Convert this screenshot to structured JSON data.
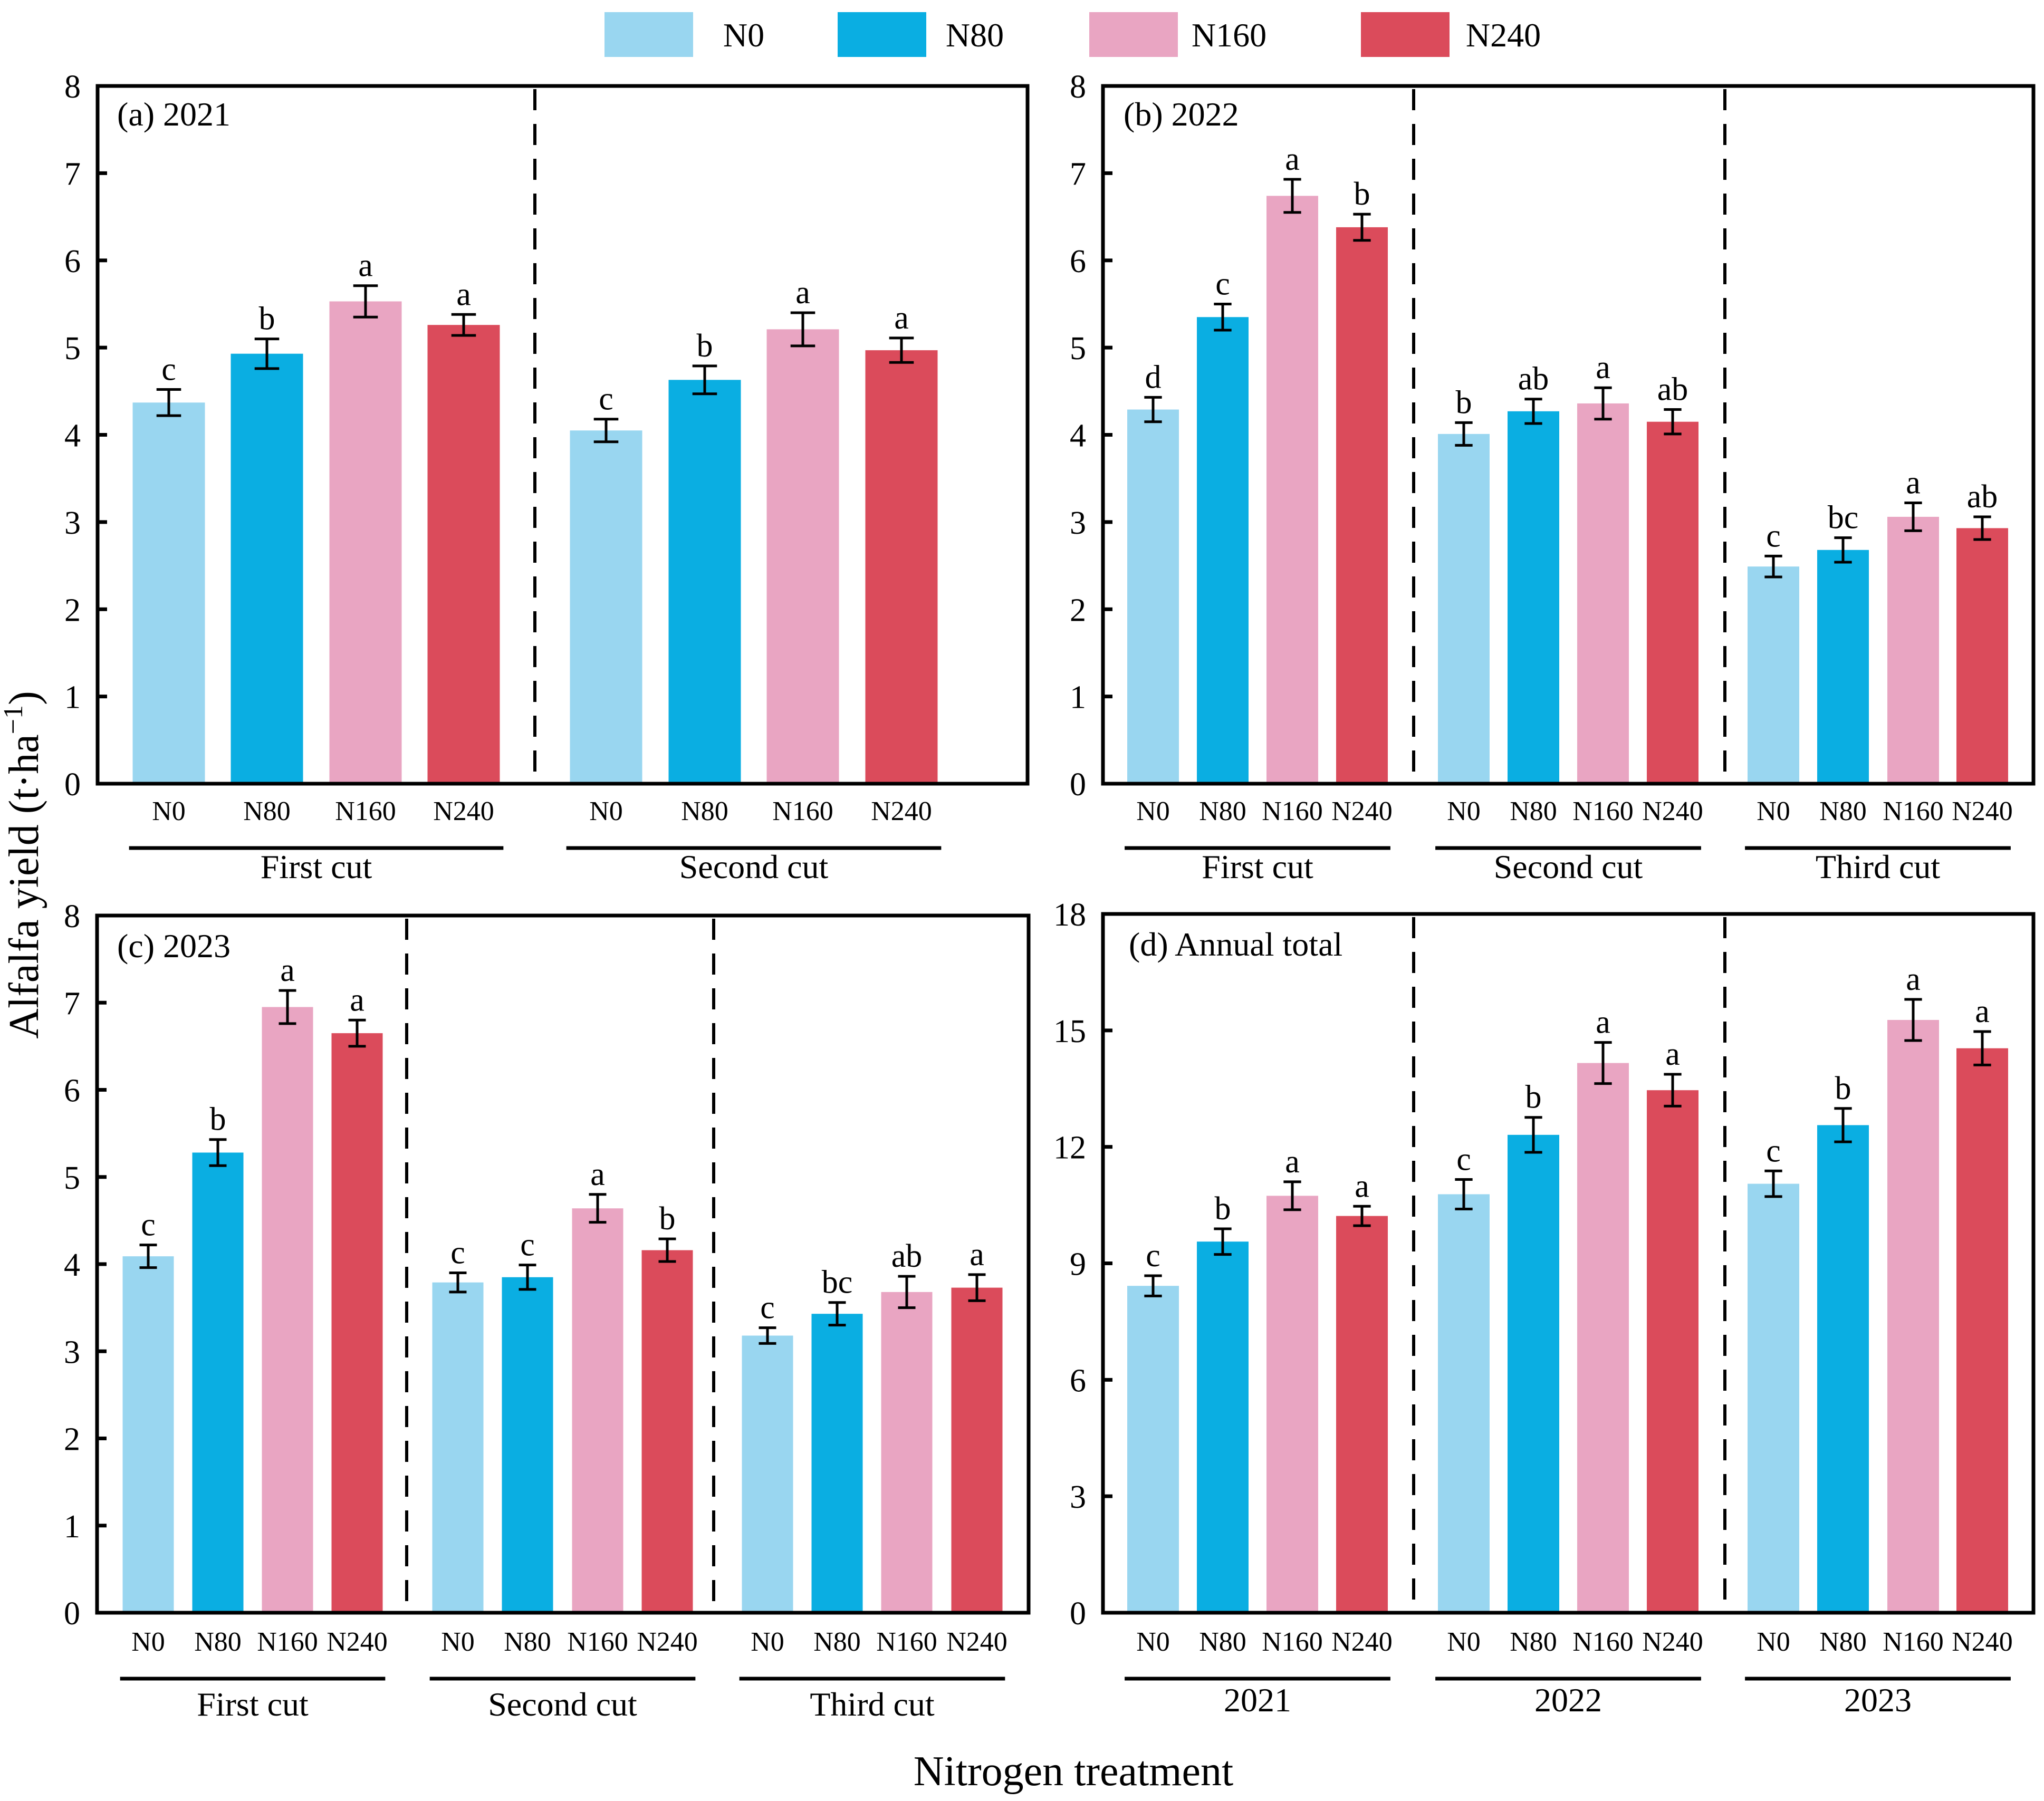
{
  "figure": {
    "ylabel_main": "Alfalfa yield (t·ha",
    "ylabel_sup": "−1",
    "ylabel_close": ")",
    "xlabel": "Nitrogen treatment"
  },
  "legend": [
    {
      "label": "N0",
      "color": "#99d6f0"
    },
    {
      "label": "N80",
      "color": "#0aaee2"
    },
    {
      "label": "N160",
      "color": "#e9a5c2"
    },
    {
      "label": "N240",
      "color": "#db4b5b"
    }
  ],
  "chart_data": [
    {
      "type": "bar",
      "title": "(a) 2021",
      "ylabel": "Alfalfa yield (t·ha−1)",
      "xlabel": "Nitrogen treatment",
      "ylim": [
        0,
        8
      ],
      "yticks": [
        0,
        1,
        2,
        3,
        4,
        5,
        6,
        7,
        8
      ],
      "categories": [
        "N0",
        "N80",
        "N160",
        "N240"
      ],
      "groups": [
        {
          "name": "First cut",
          "values": [
            4.37,
            4.93,
            5.53,
            5.26
          ],
          "errors": [
            0.15,
            0.17,
            0.18,
            0.12
          ],
          "letters": [
            "c",
            "b",
            "a",
            "a"
          ]
        },
        {
          "name": "Second cut",
          "values": [
            4.05,
            4.63,
            5.21,
            4.97
          ],
          "errors": [
            0.13,
            0.16,
            0.19,
            0.14
          ],
          "letters": [
            "c",
            "b",
            "a",
            "a"
          ]
        }
      ]
    },
    {
      "type": "bar",
      "title": "(b) 2022",
      "ylabel": "Alfalfa yield (t·ha−1)",
      "xlabel": "Nitrogen treatment",
      "ylim": [
        0,
        8
      ],
      "yticks": [
        0,
        1,
        2,
        3,
        4,
        5,
        6,
        7,
        8
      ],
      "categories": [
        "N0",
        "N80",
        "N160",
        "N240"
      ],
      "groups": [
        {
          "name": "First cut",
          "values": [
            4.29,
            5.35,
            6.74,
            6.38
          ],
          "errors": [
            0.14,
            0.15,
            0.19,
            0.15
          ],
          "letters": [
            "d",
            "c",
            "a",
            "b"
          ]
        },
        {
          "name": "Second cut",
          "values": [
            4.01,
            4.27,
            4.36,
            4.15
          ],
          "errors": [
            0.13,
            0.14,
            0.18,
            0.14
          ],
          "letters": [
            "b",
            "ab",
            "a",
            "ab"
          ]
        },
        {
          "name": "Third cut",
          "values": [
            2.49,
            2.68,
            3.06,
            2.93
          ],
          "errors": [
            0.12,
            0.14,
            0.16,
            0.13
          ],
          "letters": [
            "c",
            "bc",
            "a",
            "ab"
          ]
        }
      ]
    },
    {
      "type": "bar",
      "title": "(c) 2023",
      "ylabel": "Alfalfa yield (t·ha−1)",
      "xlabel": "Nitrogen treatment",
      "ylim": [
        0,
        8
      ],
      "yticks": [
        0,
        1,
        2,
        3,
        4,
        5,
        6,
        7,
        8
      ],
      "categories": [
        "N0",
        "N80",
        "N160",
        "N240"
      ],
      "groups": [
        {
          "name": "First cut",
          "values": [
            4.09,
            5.28,
            6.95,
            6.65
          ],
          "errors": [
            0.13,
            0.15,
            0.19,
            0.15
          ],
          "letters": [
            "c",
            "b",
            "a",
            "a"
          ]
        },
        {
          "name": "Second cut",
          "values": [
            3.79,
            3.85,
            4.64,
            4.16
          ],
          "errors": [
            0.11,
            0.14,
            0.16,
            0.13
          ],
          "letters": [
            "c",
            "c",
            "a",
            "b"
          ]
        },
        {
          "name": "Third cut",
          "values": [
            3.18,
            3.43,
            3.68,
            3.73
          ],
          "errors": [
            0.09,
            0.13,
            0.18,
            0.15
          ],
          "letters": [
            "c",
            "bc",
            "ab",
            "a"
          ]
        }
      ]
    },
    {
      "type": "bar",
      "title": "(d) Annual total",
      "ylabel": "Alfalfa yield (t·ha−1)",
      "xlabel": "Nitrogen treatment",
      "ylim": [
        0,
        18
      ],
      "yticks": [
        0,
        3,
        6,
        9,
        12,
        15,
        18
      ],
      "categories": [
        "N0",
        "N80",
        "N160",
        "N240"
      ],
      "groups": [
        {
          "name": "2021",
          "values": [
            8.42,
            9.56,
            10.74,
            10.22
          ],
          "errors": [
            0.26,
            0.33,
            0.36,
            0.25
          ],
          "letters": [
            "c",
            "b",
            "a",
            "a"
          ]
        },
        {
          "name": "2022",
          "values": [
            10.78,
            12.31,
            14.16,
            13.46
          ],
          "errors": [
            0.38,
            0.45,
            0.53,
            0.41
          ],
          "letters": [
            "c",
            "b",
            "a",
            "a"
          ]
        },
        {
          "name": "2023",
          "values": [
            11.05,
            12.56,
            15.27,
            14.54
          ],
          "errors": [
            0.33,
            0.43,
            0.53,
            0.43
          ],
          "letters": [
            "c",
            "b",
            "a",
            "a"
          ]
        }
      ]
    }
  ]
}
